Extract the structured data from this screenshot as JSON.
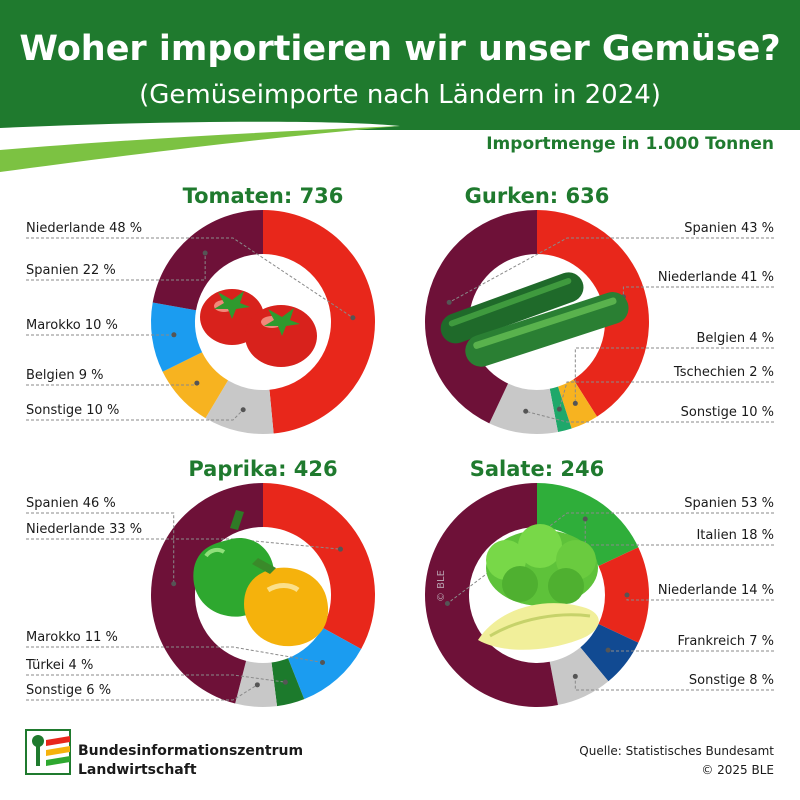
{
  "header": {
    "title": "Woher importieren wir unser Gemüse?",
    "subtitle": "(Gemüseimporte nach Ländern in 2024)",
    "unit_note": "Importmenge in 1.000 Tonnen"
  },
  "colors": {
    "header_green": "#1f7a2e",
    "title_text": "#ffffff",
    "heading_green": "#1f7a2e",
    "label_text": "#1a1a1a"
  },
  "chart_data": [
    {
      "type": "pie",
      "name": "Tomaten",
      "total": "736",
      "slices": [
        {
          "label": "Niederlande",
          "value": 48,
          "text": "Niederlande 48 %",
          "color": "#e8271b"
        },
        {
          "label": "Sonstige",
          "value": 10,
          "text": "Sonstige 10 %",
          "color": "#c8c8c8"
        },
        {
          "label": "Belgien",
          "value": 9,
          "text": "Belgien 9 %",
          "color": "#f7b320"
        },
        {
          "label": "Marokko",
          "value": 10,
          "text": "Marokko 10 %",
          "color": "#1b9cf0"
        },
        {
          "label": "Spanien",
          "value": 22,
          "text": "Spanien 22 %",
          "color": "#6e1138"
        }
      ]
    },
    {
      "type": "pie",
      "name": "Gurken",
      "total": "636",
      "slices": [
        {
          "label": "Niederlande",
          "value": 41,
          "text": "Niederlande 41 %",
          "color": "#e8271b"
        },
        {
          "label": "Belgien",
          "value": 4,
          "text": "Belgien 4 %",
          "color": "#f7b320"
        },
        {
          "label": "Tschechien",
          "value": 2,
          "text": "Tschechien 2 %",
          "color": "#1fa86a"
        },
        {
          "label": "Sonstige",
          "value": 10,
          "text": "Sonstige 10 %",
          "color": "#c8c8c8"
        },
        {
          "label": "Spanien",
          "value": 43,
          "text": "Spanien 43 %",
          "color": "#6e1138"
        }
      ]
    },
    {
      "type": "pie",
      "name": "Paprika",
      "total": "426",
      "slices": [
        {
          "label": "Niederlande",
          "value": 33,
          "text": "Niederlande 33 %",
          "color": "#e8271b"
        },
        {
          "label": "Marokko",
          "value": 11,
          "text": "Marokko 11 %",
          "color": "#1b9cf0"
        },
        {
          "label": "Türkei",
          "value": 4,
          "text": "Türkei 4 %",
          "color": "#1c7a2c"
        },
        {
          "label": "Sonstige",
          "value": 6,
          "text": "Sonstige 6 %",
          "color": "#c8c8c8"
        },
        {
          "label": "Spanien",
          "value": 46,
          "text": "Spanien 46 %",
          "color": "#6e1138"
        }
      ]
    },
    {
      "type": "pie",
      "name": "Salate",
      "total": "246",
      "slices": [
        {
          "label": "Italien",
          "value": 18,
          "text": "Italien 18 %",
          "color": "#2fae3a"
        },
        {
          "label": "Niederlande",
          "value": 14,
          "text": "Niederlande 14 %",
          "color": "#e8271b"
        },
        {
          "label": "Frankreich",
          "value": 7,
          "text": "Frankreich 7 %",
          "color": "#114a92"
        },
        {
          "label": "Sonstige",
          "value": 8,
          "text": "Sonstige 8 %",
          "color": "#c8c8c8"
        },
        {
          "label": "Spanien",
          "value": 53,
          "text": "Spanien 53 %",
          "color": "#6e1138"
        }
      ]
    }
  ],
  "footer": {
    "logo_line1": "Bundesinformationszentrum",
    "logo_line2": "Landwirtschaft",
    "source": "Quelle: Statistisches Bundesamt",
    "copyright": "© 2025 BLE",
    "watermark": "© BLE"
  }
}
